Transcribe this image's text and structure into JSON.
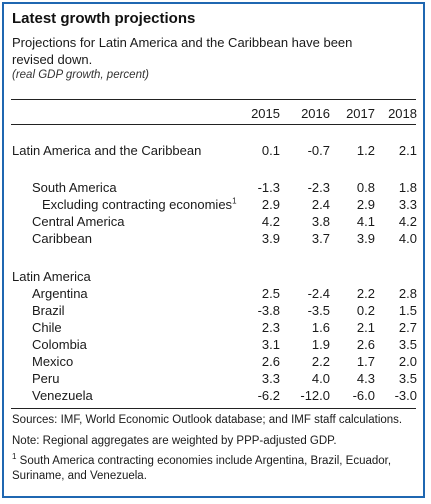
{
  "title": "Latest growth projections",
  "subtitle": "Projections for Latin America and the Caribbean have been revised down.",
  "unit": "(real GDP growth, percent)",
  "columns": [
    "2015",
    "2016",
    "2017",
    "2018"
  ],
  "rows": [
    {
      "label": "Latin America and the Caribbean",
      "values": [
        "0.1",
        "-0.7",
        "1.2",
        "2.1"
      ]
    },
    {
      "label": "South America",
      "values": [
        "-1.3",
        "-2.3",
        "0.8",
        "1.8"
      ]
    },
    {
      "label": "Excluding contracting economies",
      "footnote_mark": "1",
      "values": [
        "2.9",
        "2.4",
        "2.9",
        "3.3"
      ]
    },
    {
      "label": "Central America",
      "values": [
        "4.2",
        "3.8",
        "4.1",
        "4.2"
      ]
    },
    {
      "label": "Caribbean",
      "values": [
        "3.9",
        "3.7",
        "3.9",
        "4.0"
      ]
    },
    {
      "label": "Latin America",
      "values": []
    },
    {
      "label": "Argentina",
      "values": [
        "2.5",
        "-2.4",
        "2.2",
        "2.8"
      ]
    },
    {
      "label": "Brazil",
      "values": [
        "-3.8",
        "-3.5",
        "0.2",
        "1.5"
      ]
    },
    {
      "label": "Chile",
      "values": [
        "2.3",
        "1.6",
        "2.1",
        "2.7"
      ]
    },
    {
      "label": "Colombia",
      "values": [
        "3.1",
        "1.9",
        "2.6",
        "3.5"
      ]
    },
    {
      "label": "Mexico",
      "values": [
        "2.6",
        "2.2",
        "1.7",
        "2.0"
      ]
    },
    {
      "label": "Peru",
      "values": [
        "3.3",
        "4.0",
        "4.3",
        "3.5"
      ]
    },
    {
      "label": "Venezuela",
      "values": [
        "-6.2",
        "-12.0",
        "-6.0",
        "-3.0"
      ]
    }
  ],
  "sources": "Sources: IMF, World Economic Outlook database; and IMF staff calculations.",
  "note": "Note: Regional aggregates are weighted by PPP-adjusted GDP.",
  "footnote_mark": "1",
  "footnote": "South America contracting economies include Argentina, Brazil, Ecuador, Suriname, and Venezuela."
}
